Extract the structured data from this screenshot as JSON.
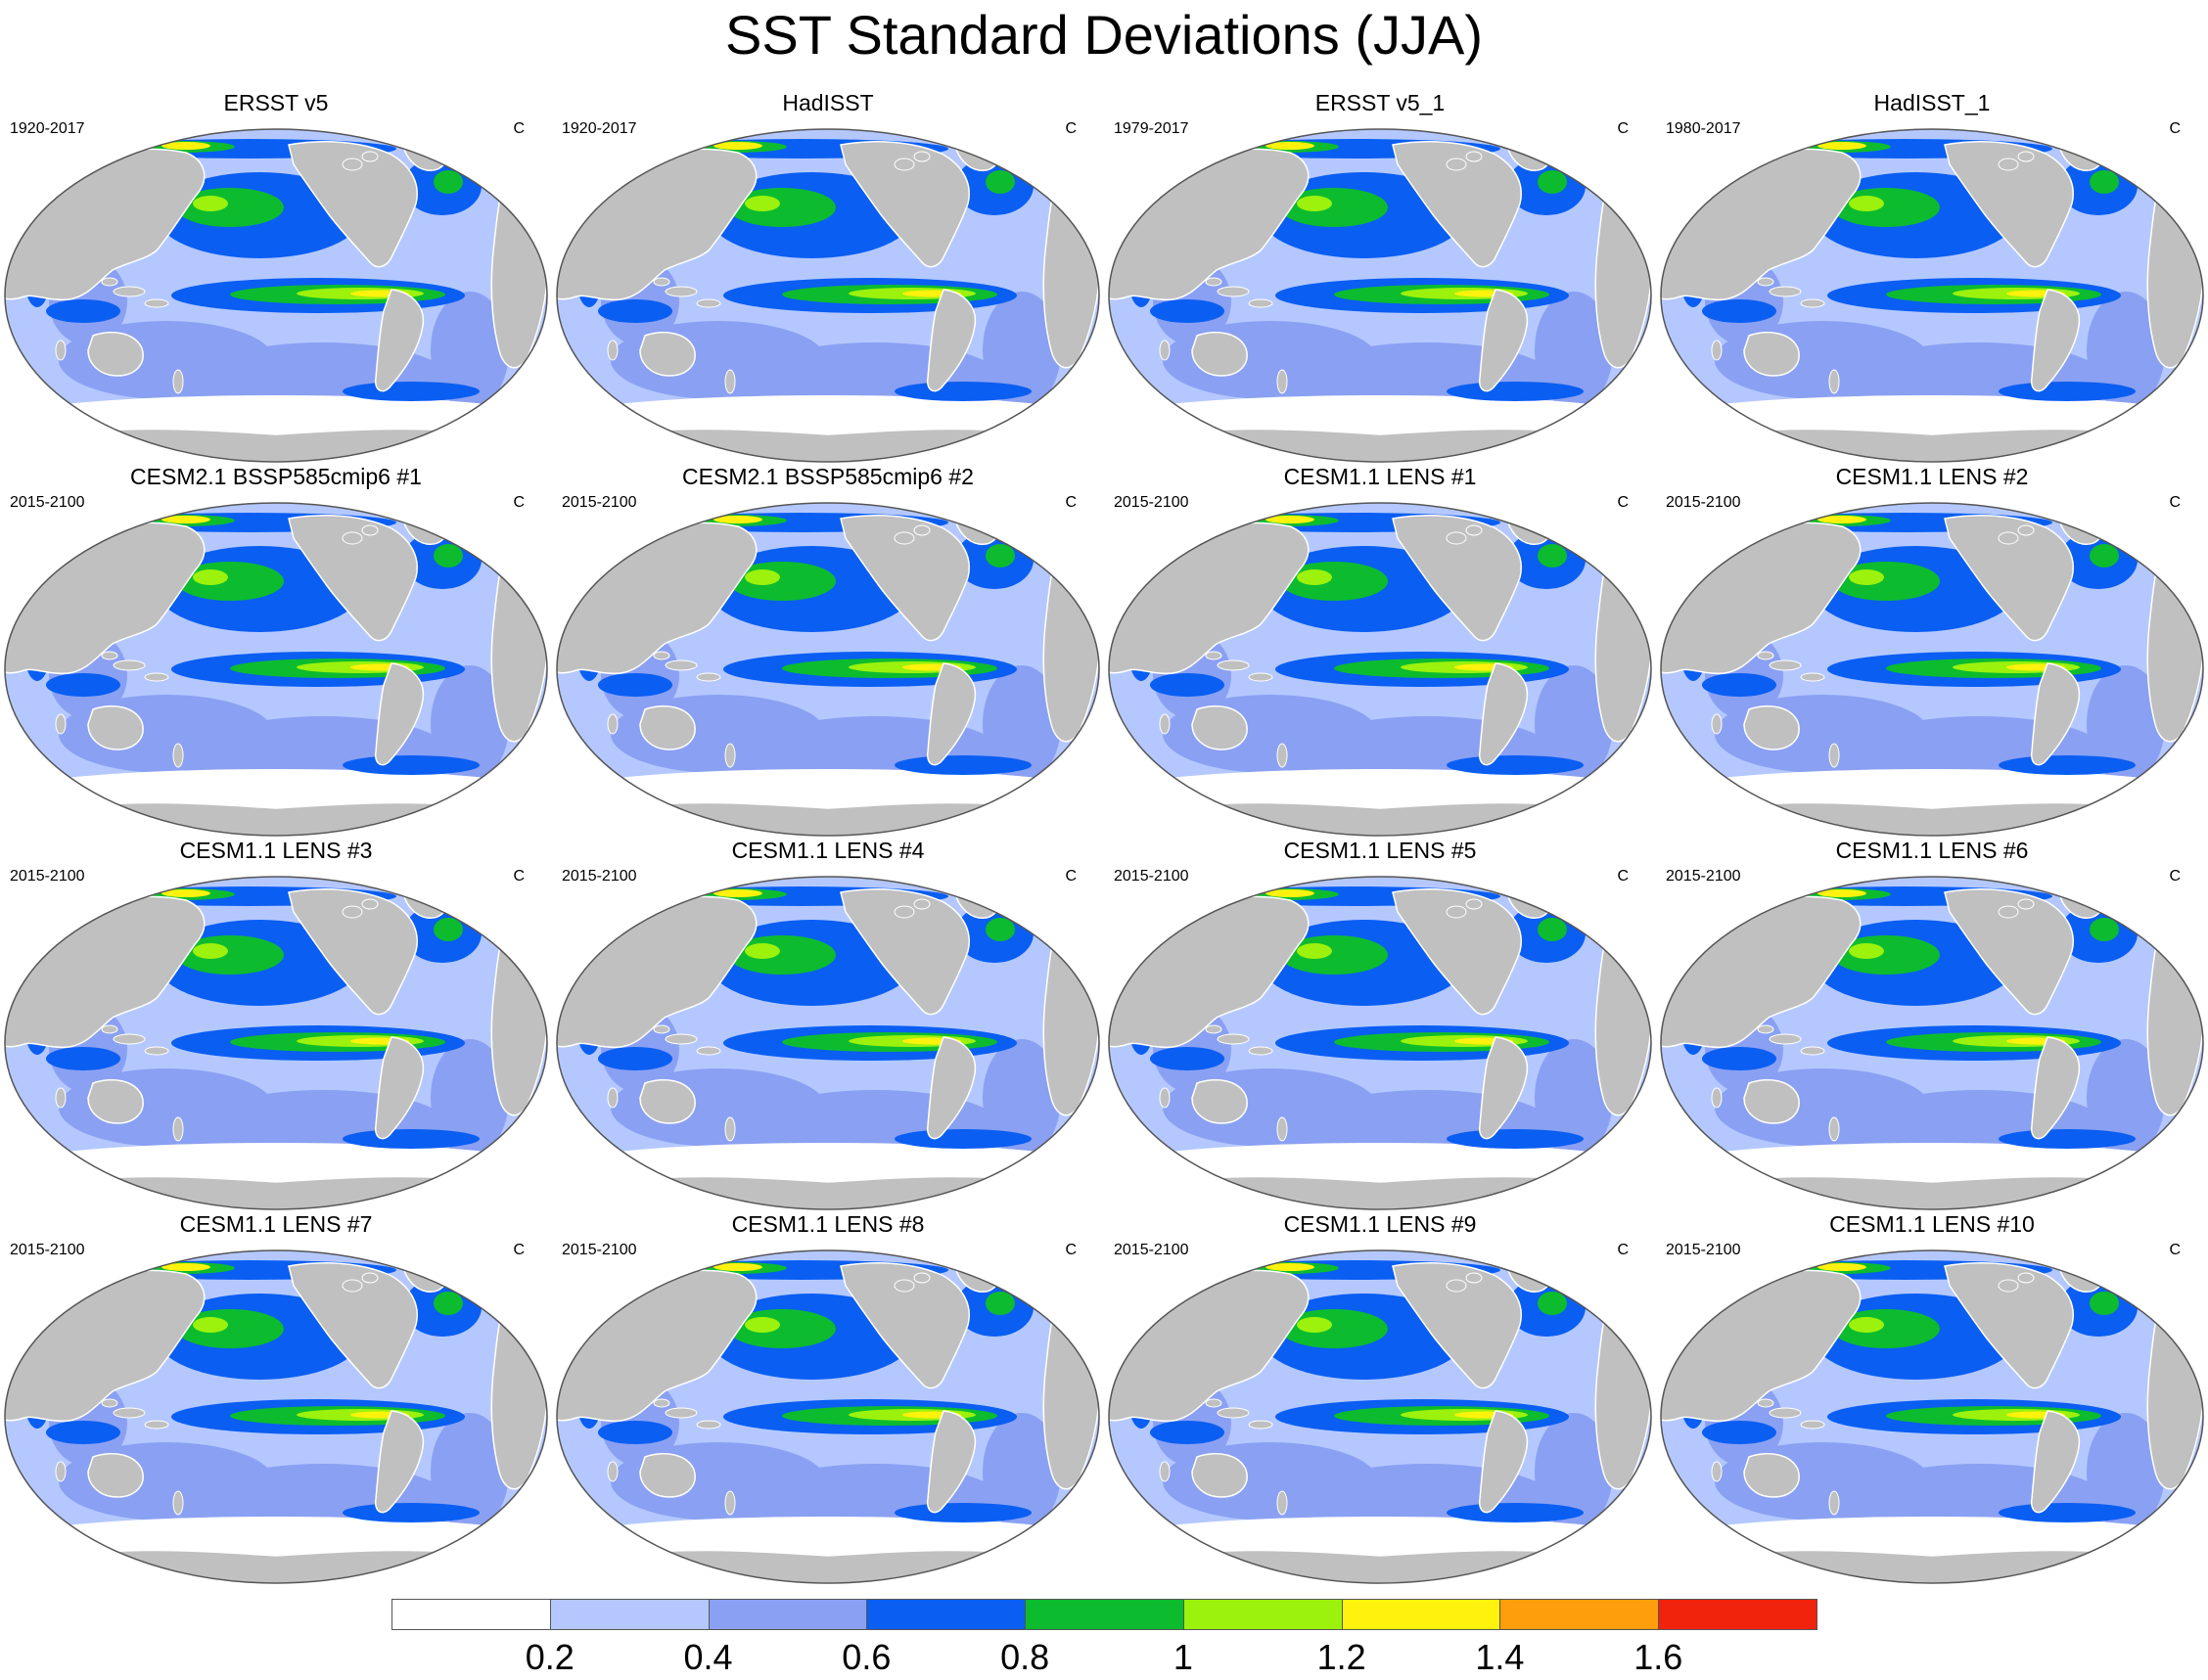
{
  "title": "SST Standard Deviations (JJA)",
  "colors": {
    "land": "#c0c0c0",
    "coast": "#ffffff",
    "outline": "#555555",
    "levels": [
      "#ffffff",
      "#b4c8ff",
      "#8aa0f2",
      "#0a5ef2",
      "#0cbc2e",
      "#9cf20c",
      "#fff20c",
      "#ff9e0c",
      "#f2230c"
    ]
  },
  "colorbar": {
    "labels": [
      "0.2",
      "0.4",
      "0.6",
      "0.8",
      "1",
      "1.2",
      "1.4",
      "1.6"
    ]
  },
  "panels": [
    {
      "title": "ERSST v5",
      "period": "1920-2017",
      "unit": "C"
    },
    {
      "title": "HadISST",
      "period": "1920-2017",
      "unit": "C"
    },
    {
      "title": "ERSST v5_1",
      "period": "1979-2017",
      "unit": "C"
    },
    {
      "title": "HadISST_1",
      "period": "1980-2017",
      "unit": "C"
    },
    {
      "title": "CESM2.1 BSSP585cmip6 #1",
      "period": "2015-2100",
      "unit": "C"
    },
    {
      "title": "CESM2.1 BSSP585cmip6 #2",
      "period": "2015-2100",
      "unit": "C"
    },
    {
      "title": "CESM1.1 LENS #1",
      "period": "2015-2100",
      "unit": "C"
    },
    {
      "title": "CESM1.1 LENS #2",
      "period": "2015-2100",
      "unit": "C"
    },
    {
      "title": "CESM1.1 LENS #3",
      "period": "2015-2100",
      "unit": "C"
    },
    {
      "title": "CESM1.1 LENS #4",
      "period": "2015-2100",
      "unit": "C"
    },
    {
      "title": "CESM1.1 LENS #5",
      "period": "2015-2100",
      "unit": "C"
    },
    {
      "title": "CESM1.1 LENS #6",
      "period": "2015-2100",
      "unit": "C"
    },
    {
      "title": "CESM1.1 LENS #7",
      "period": "2015-2100",
      "unit": "C"
    },
    {
      "title": "CESM1.1 LENS #8",
      "period": "2015-2100",
      "unit": "C"
    },
    {
      "title": "CESM1.1 LENS #9",
      "period": "2015-2100",
      "unit": "C"
    },
    {
      "title": "CESM1.1 LENS #10",
      "period": "2015-2100",
      "unit": "C"
    }
  ]
}
